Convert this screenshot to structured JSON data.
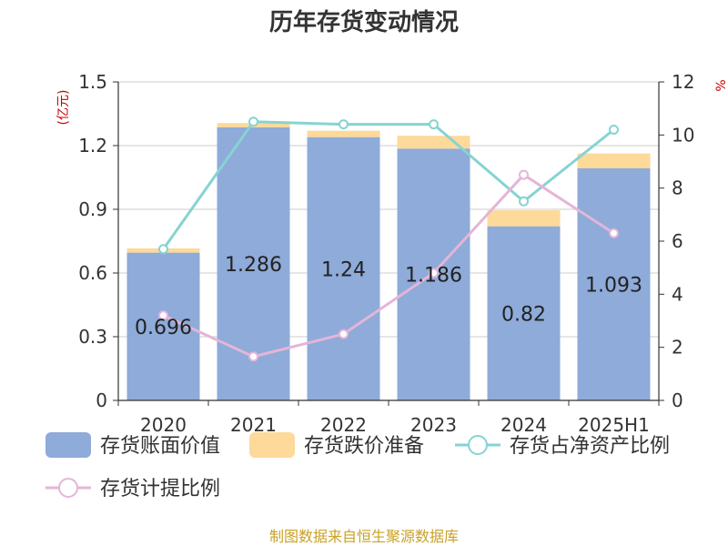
{
  "chart_data": {
    "type": "bar",
    "title": "历年存货变动情况",
    "categories": [
      "2020",
      "2021",
      "2022",
      "2023",
      "2024",
      "2025H1"
    ],
    "left_axis": {
      "unit_label": "(亿元)",
      "range": [
        0,
        1.5
      ],
      "ticks": [
        "0",
        "0.3",
        "0.6",
        "0.9",
        "1.2",
        "1.5"
      ]
    },
    "right_axis": {
      "unit_label": "%",
      "range": [
        0,
        12
      ],
      "ticks": [
        "0",
        "2",
        "4",
        "6",
        "8",
        "10",
        "12"
      ]
    },
    "series": [
      {
        "name": "存货账面价值",
        "kind": "bar",
        "stack": "inv",
        "color": "#8eabd9",
        "values": [
          0.696,
          1.286,
          1.24,
          1.186,
          0.82,
          1.093
        ],
        "labels": [
          "0.696",
          "1.286",
          "1.24",
          "1.186",
          "0.82",
          "1.093"
        ]
      },
      {
        "name": "存货跌价准备",
        "kind": "bar",
        "stack": "inv",
        "color": "#fdd99a",
        "values": [
          0.02,
          0.02,
          0.03,
          0.06,
          0.075,
          0.07
        ]
      },
      {
        "name": "存货占净资产比例",
        "kind": "line",
        "axis": "right",
        "color": "#86d3d3",
        "values": [
          5.7,
          10.5,
          10.4,
          10.4,
          7.5,
          10.2
        ]
      },
      {
        "name": "存货计提比例",
        "kind": "line",
        "axis": "right",
        "color": "#e4b5d8",
        "values": [
          3.2,
          1.65,
          2.5,
          4.8,
          8.5,
          6.3
        ]
      }
    ],
    "grid": true,
    "legend_position": "bottom",
    "source": "制图数据来自恒生聚源数据库"
  }
}
